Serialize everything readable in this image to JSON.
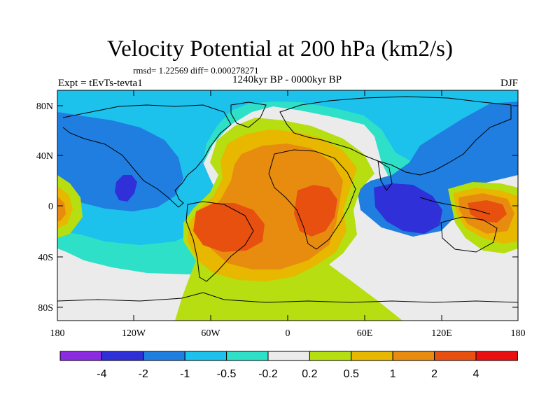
{
  "title": "Velocity Potential at 200 hPa (km2/s)",
  "stats": "rmsd= 1.22569  diff= 0.000278271",
  "experiment": "Expt = tEvTs-tevta1",
  "period": "1240kyr BP - 0000kyr BP",
  "season": "DJF",
  "lat_ticks": [
    "80N",
    "40N",
    "0",
    "40S",
    "80S"
  ],
  "lon_ticks": [
    "180",
    "120W",
    "60W",
    "0",
    "60E",
    "120E",
    "180"
  ],
  "colorbar": {
    "labels": [
      "-4",
      "-2",
      "-1",
      "-0.5",
      "-0.2",
      "0.2",
      "0.5",
      "1",
      "2",
      "4"
    ],
    "colors": [
      "#8a2be2",
      "#3030d8",
      "#1f7ee0",
      "#1cc1ec",
      "#2ee0c8",
      "#ebebeb",
      "#b6de10",
      "#e8b800",
      "#e88c10",
      "#e85010",
      "#e81010"
    ]
  },
  "palette": {
    "neg4": "#3030d8",
    "neg2": "#1f7ee0",
    "neg1": "#1cc1ec",
    "neg05": "#2ee0c8",
    "zero": "#ebebeb",
    "pos02": "#b6de10",
    "pos05": "#e8b800",
    "pos1": "#e88c10",
    "pos2": "#e85010",
    "pos4": "#e81010"
  }
}
